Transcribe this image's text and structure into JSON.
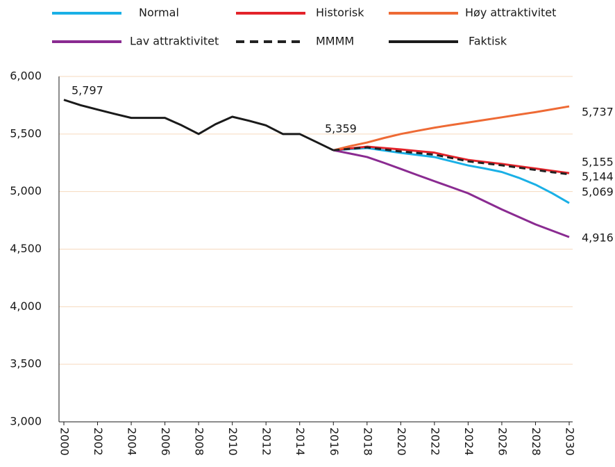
{
  "chart_data": {
    "type": "line",
    "x": [
      2000,
      2001,
      2002,
      2003,
      2004,
      2005,
      2006,
      2007,
      2008,
      2009,
      2010,
      2011,
      2012,
      2013,
      2014,
      2015,
      2016,
      2017,
      2018,
      2019,
      2020,
      2021,
      2022,
      2023,
      2024,
      2025,
      2026,
      2027,
      2028,
      2029,
      2030
    ],
    "series": [
      {
        "name": "Normal",
        "color": "#1ab0e6",
        "dash": false,
        "values": [
          null,
          null,
          null,
          null,
          null,
          null,
          null,
          null,
          null,
          null,
          null,
          null,
          null,
          null,
          null,
          null,
          5359,
          5369,
          5378,
          5357,
          5336,
          5318,
          5300,
          5263,
          5227,
          5200,
          5170,
          5120,
          5060,
          4985,
          4900
        ]
      },
      {
        "name": "Historisk",
        "color": "#e3232a",
        "dash": false,
        "values": [
          null,
          null,
          null,
          null,
          null,
          null,
          null,
          null,
          null,
          null,
          null,
          null,
          null,
          null,
          null,
          null,
          5359,
          5375,
          5390,
          5378,
          5366,
          5352,
          5338,
          5305,
          5275,
          5257,
          5240,
          5220,
          5200,
          5180,
          5160
        ]
      },
      {
        "name": "Høy attraktivitet",
        "color": "#ee6a35",
        "dash": false,
        "values": [
          null,
          null,
          null,
          null,
          null,
          null,
          null,
          null,
          null,
          null,
          null,
          null,
          null,
          null,
          null,
          null,
          5359,
          5395,
          5426,
          5465,
          5500,
          5528,
          5555,
          5578,
          5600,
          5623,
          5645,
          5668,
          5690,
          5715,
          5740
        ]
      },
      {
        "name": "Lav attraktivitet",
        "color": "#8a2b91",
        "dash": false,
        "values": [
          null,
          null,
          null,
          null,
          null,
          null,
          null,
          null,
          null,
          null,
          null,
          null,
          null,
          null,
          null,
          null,
          5359,
          5330,
          5300,
          5250,
          5197,
          5143,
          5090,
          5038,
          4985,
          4915,
          4845,
          4780,
          4715,
          4660,
          4605
        ]
      },
      {
        "name": "MMMM",
        "color": "#222222",
        "dash": true,
        "values": [
          null,
          null,
          null,
          null,
          null,
          null,
          null,
          null,
          null,
          null,
          null,
          null,
          null,
          null,
          null,
          null,
          5359,
          5372,
          5384,
          5366,
          5348,
          5335,
          5320,
          5292,
          5263,
          5245,
          5228,
          5208,
          5188,
          5168,
          5150
        ]
      },
      {
        "name": "Faktisk",
        "color": "#1a1a1a",
        "dash": false,
        "values": [
          5797,
          5750,
          5712,
          5675,
          5640,
          5640,
          5640,
          5575,
          5500,
          5585,
          5650,
          5615,
          5575,
          5500,
          5500,
          5430,
          5359,
          null,
          null,
          null,
          null,
          null,
          null,
          null,
          null,
          null,
          null,
          null,
          null,
          null,
          null
        ]
      }
    ],
    "annotations": [
      "5,797",
      "5,359",
      "5,737",
      "5,155",
      "5,144",
      "5,069",
      "4,916"
    ],
    "xlim": [
      2000,
      2030
    ],
    "xticks": [
      2000,
      2002,
      2004,
      2006,
      2008,
      2010,
      2012,
      2014,
      2016,
      2018,
      2020,
      2022,
      2024,
      2026,
      2028,
      2030
    ],
    "ylim": [
      3000,
      6000
    ],
    "yticks": [
      {
        "value": 3000,
        "label": "3,000"
      },
      {
        "value": 3500,
        "label": "3,500"
      },
      {
        "value": 4000,
        "label": "4,000"
      },
      {
        "value": 4500,
        "label": "4,500"
      },
      {
        "value": 5000,
        "label": "5,000"
      },
      {
        "value": 5500,
        "label": "5,500"
      },
      {
        "value": 6000,
        "label": "6,000"
      }
    ],
    "grid": true
  }
}
